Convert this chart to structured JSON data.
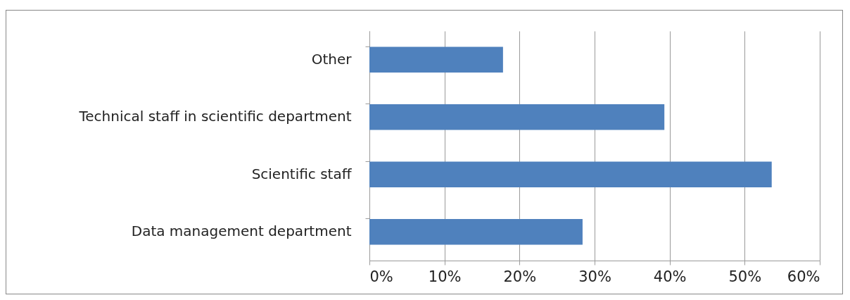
{
  "chart_data": {
    "type": "bar",
    "orientation": "horizontal",
    "categories": [
      "Other",
      "Technical staff in scientific department",
      "Scientific staff",
      "Data management department"
    ],
    "values": [
      17.8,
      39.3,
      53.6,
      28.4
    ],
    "color": "#4f81bd",
    "xlim": [
      0,
      60
    ],
    "xticks": [
      {
        "value": 0,
        "label": "0%"
      },
      {
        "value": 10,
        "label": "10%"
      },
      {
        "value": 20,
        "label": "20%"
      },
      {
        "value": 30,
        "label": "30%"
      },
      {
        "value": 40,
        "label": "40%"
      },
      {
        "value": 50,
        "label": "50%"
      },
      {
        "value": 60,
        "label": "60%"
      }
    ],
    "grid": "x"
  }
}
